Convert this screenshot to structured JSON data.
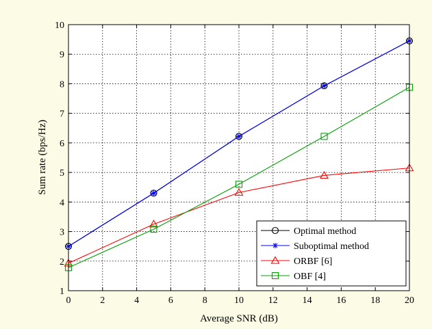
{
  "chart_data": {
    "type": "line",
    "xlabel": "Average SNR (dB)",
    "ylabel": "Sum rate (bps/Hz)",
    "xlim": [
      0,
      20
    ],
    "ylim": [
      1,
      10
    ],
    "xticks": [
      0,
      2,
      4,
      6,
      8,
      10,
      12,
      14,
      16,
      18,
      20
    ],
    "yticks": [
      1,
      2,
      3,
      4,
      5,
      6,
      7,
      8,
      9,
      10
    ],
    "grid": true,
    "legend_position": "bottom-right",
    "x": [
      0,
      5,
      10,
      15,
      20
    ],
    "series": [
      {
        "name": "Optimal method",
        "values": [
          2.5,
          4.3,
          6.22,
          7.93,
          9.45
        ],
        "color": "#000000",
        "marker": "circle"
      },
      {
        "name": "Suboptimal method",
        "values": [
          2.5,
          4.3,
          6.22,
          7.93,
          9.45
        ],
        "color": "#0000ff",
        "marker": "star"
      },
      {
        "name": "ORBF [6]",
        "values": [
          1.93,
          3.25,
          4.32,
          4.9,
          5.15
        ],
        "color": "#ff0000",
        "marker": "triangle"
      },
      {
        "name": "OBF [4]",
        "values": [
          1.78,
          3.08,
          4.6,
          6.22,
          7.88
        ],
        "color": "#00a000",
        "marker": "square"
      }
    ]
  }
}
